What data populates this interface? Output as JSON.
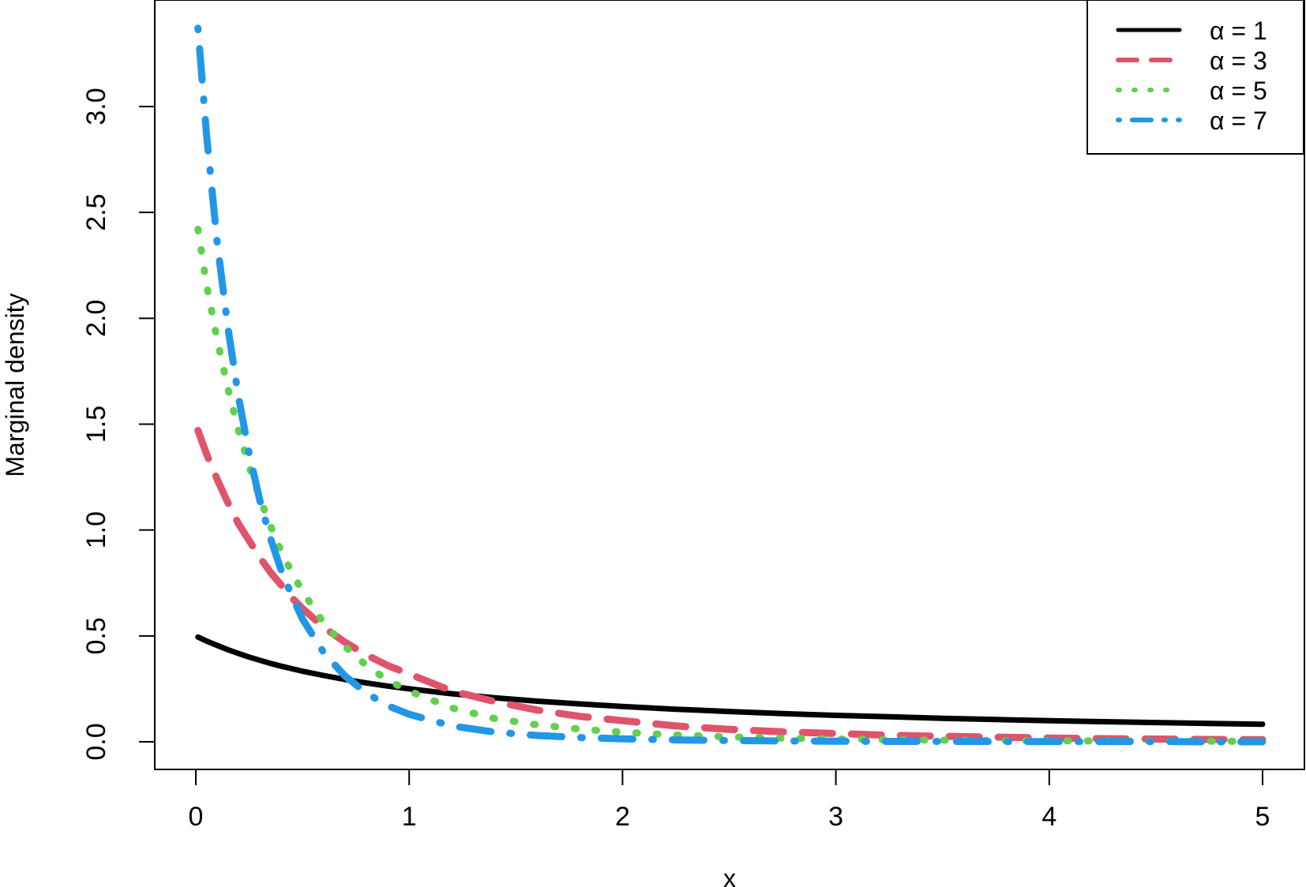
{
  "chart_data": {
    "type": "line",
    "title": "",
    "xlabel": "x",
    "ylabel": "Marginal density",
    "xlim": [
      0,
      5
    ],
    "ylim": [
      0,
      3.3
    ],
    "x_ticks": [
      "0",
      "1",
      "2",
      "3",
      "4",
      "5"
    ],
    "y_ticks": [
      "0.0",
      "0.5",
      "1.0",
      "1.5",
      "2.0",
      "2.5",
      "3.0"
    ],
    "x_tick_values": [
      0,
      1,
      2,
      3,
      4,
      5
    ],
    "y_tick_values": [
      0,
      0.5,
      1,
      1.5,
      2,
      2.5,
      3
    ],
    "grid": false,
    "legend_position": "top-right",
    "x": [
      0.01,
      0.05,
      0.1,
      0.15,
      0.2,
      0.25,
      0.3,
      0.35,
      0.4,
      0.45,
      0.5,
      0.6,
      0.7,
      0.8,
      0.9,
      1.0,
      1.2,
      1.4,
      1.6,
      1.8,
      2.0,
      2.25,
      2.5,
      2.75,
      3.0,
      3.25,
      3.5,
      3.75,
      4.0,
      4.25,
      4.5,
      4.75,
      5.0
    ],
    "series": [
      {
        "name": "α = 1",
        "color": "#000000",
        "dash": "solid",
        "values": [
          0.495,
          0.476,
          0.455,
          0.435,
          0.417,
          0.4,
          0.385,
          0.37,
          0.357,
          0.345,
          0.333,
          0.313,
          0.294,
          0.278,
          0.263,
          0.25,
          0.227,
          0.208,
          0.192,
          0.179,
          0.167,
          0.154,
          0.143,
          0.133,
          0.125,
          0.118,
          0.111,
          0.105,
          0.1,
          0.095,
          0.091,
          0.087,
          0.083
        ]
      },
      {
        "name": "α = 3",
        "color": "#DF536B",
        "dash": "dashed",
        "values": [
          1.47,
          1.36,
          1.24,
          1.13,
          1.03,
          0.95,
          0.87,
          0.8,
          0.74,
          0.68,
          0.63,
          0.54,
          0.47,
          0.41,
          0.36,
          0.32,
          0.24,
          0.19,
          0.15,
          0.12,
          0.1,
          0.075,
          0.059,
          0.047,
          0.039,
          0.031,
          0.026,
          0.022,
          0.018,
          0.015,
          0.013,
          0.011,
          0.01
        ]
      },
      {
        "name": "α = 5",
        "color": "#61D04F",
        "dash": "dotted",
        "values": [
          2.42,
          2.16,
          1.9,
          1.67,
          1.47,
          1.3,
          1.15,
          1.02,
          0.9,
          0.8,
          0.71,
          0.56,
          0.45,
          0.36,
          0.29,
          0.24,
          0.16,
          0.11,
          0.08,
          0.06,
          0.045,
          0.032,
          0.023,
          0.017,
          0.013,
          0.01,
          0.008,
          0.006,
          0.005,
          0.004,
          0.003,
          0.003,
          0.002
        ]
      },
      {
        "name": "α = 7",
        "color": "#2297E6",
        "dash": "dotdash",
        "values": [
          3.37,
          2.87,
          2.36,
          1.96,
          1.63,
          1.36,
          1.14,
          0.96,
          0.81,
          0.69,
          0.58,
          0.42,
          0.31,
          0.23,
          0.17,
          0.13,
          0.075,
          0.046,
          0.03,
          0.02,
          0.014,
          0.009,
          0.006,
          0.004,
          0.003,
          0.002,
          0.002,
          0.001,
          0.001,
          0.001,
          0.001,
          0,
          0
        ]
      }
    ]
  }
}
